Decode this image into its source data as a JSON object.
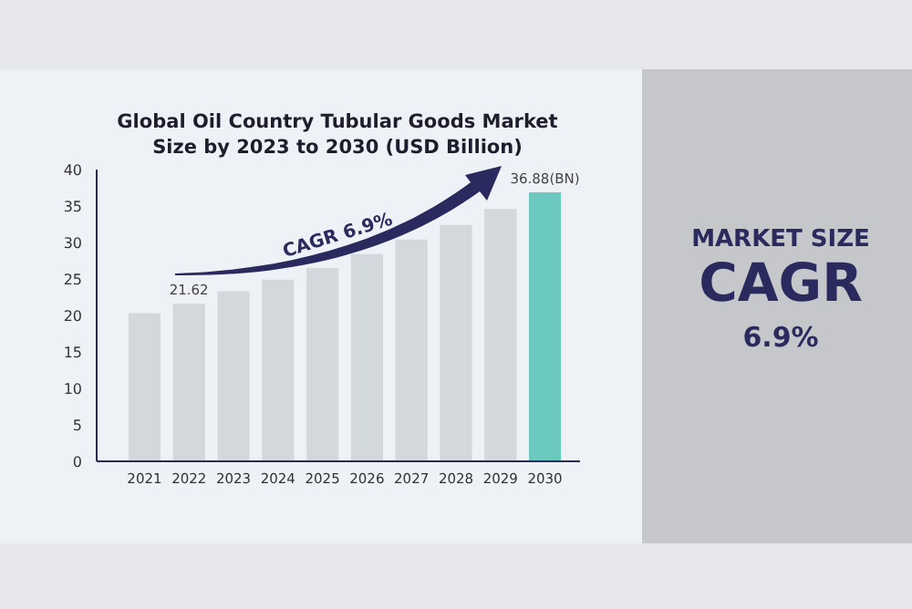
{
  "chart_data": [
    {
      "type": "bar",
      "title": "Global Oil Country Tubular Goods Market Size by 2023 to 2030 (USD Billion)",
      "categories": [
        "2021",
        "2022",
        "2023",
        "2024",
        "2025",
        "2026",
        "2027",
        "2028",
        "2029",
        "2030"
      ],
      "values": [
        20.3,
        21.62,
        23.3,
        24.9,
        26.5,
        28.4,
        30.4,
        32.4,
        34.6,
        36.88
      ],
      "colors": [
        "#d3d8dd",
        "#d3d8dd",
        "#d3d8dd",
        "#d3d8dd",
        "#d3d8dd",
        "#d3d8dd",
        "#d3d8dd",
        "#d3d8dd",
        "#d3d8dd",
        "#6cc9bf"
      ],
      "value_labels": [
        null,
        "21.62",
        null,
        null,
        null,
        null,
        null,
        null,
        null,
        "36.88(BN)"
      ],
      "ylim": [
        0,
        40
      ],
      "yticks": [
        0,
        5,
        10,
        15,
        20,
        25,
        30,
        35,
        40
      ],
      "grid": false,
      "annotations": [
        "CAGR 6.9%"
      ]
    },
    {
      "type": "other",
      "title": "MARKET SIZE",
      "subtitle": "CAGR",
      "annotations": [
        "6.9%"
      ]
    }
  ]
}
